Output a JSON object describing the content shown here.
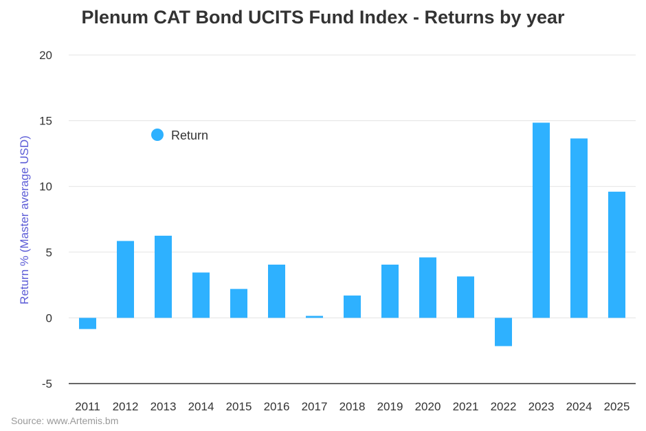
{
  "chart_data": {
    "type": "bar",
    "title": "Plenum CAT Bond UCITS Fund Index - Returns by year",
    "xlabel": "",
    "ylabel": "Return % (Master average USD)",
    "categories": [
      "2011",
      "2012",
      "2013",
      "2014",
      "2015",
      "2016",
      "2017",
      "2018",
      "2019",
      "2020",
      "2021",
      "2022",
      "2023",
      "2024",
      "2025"
    ],
    "series": [
      {
        "name": "Return",
        "values": [
          -0.85,
          5.85,
          6.25,
          3.45,
          2.2,
          4.05,
          0.15,
          1.7,
          4.05,
          4.6,
          3.15,
          -2.15,
          14.85,
          13.65,
          9.6
        ]
      }
    ],
    "ylim": [
      -5,
      20
    ],
    "yticks": [
      -5,
      0,
      5,
      10,
      15,
      20
    ],
    "grid": true,
    "legend": "top-left",
    "colors": {
      "bar": "#2EB1FF",
      "ylabel": "#5B5BD6",
      "title": "#333333",
      "source": "#999999"
    }
  },
  "source": "Source: www.Artemis.bm"
}
